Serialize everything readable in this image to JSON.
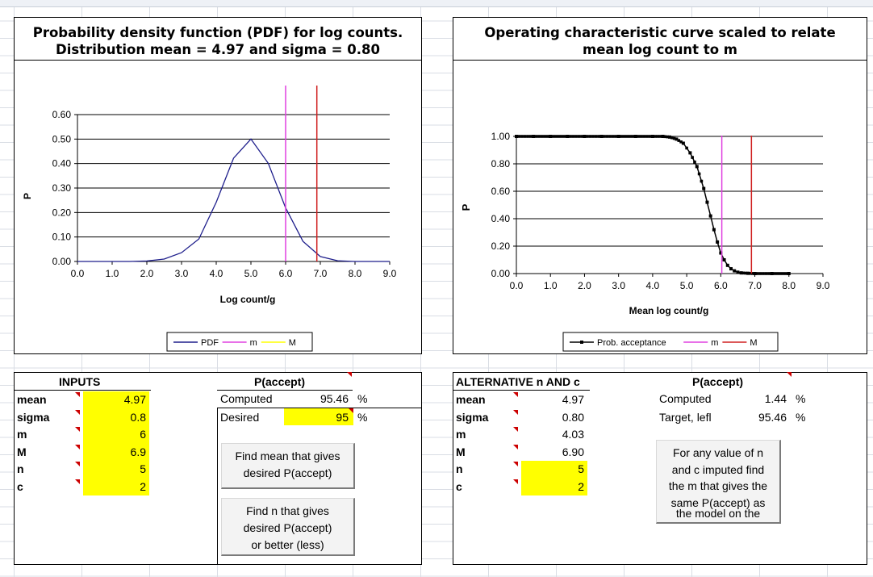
{
  "chart_data": [
    {
      "type": "line",
      "title": "Probability density function (PDF) for log counts.",
      "subtitle": "Distribution mean = 4.97 and sigma = 0.80",
      "xlabel": "Log count/g",
      "ylabel": "P",
      "xlim": [
        0,
        9
      ],
      "ylim": [
        0,
        0.6
      ],
      "xticks": [
        "0.0",
        "1.0",
        "2.0",
        "3.0",
        "4.0",
        "5.0",
        "6.0",
        "7.0",
        "8.0",
        "9.0"
      ],
      "yticks": [
        "0.00",
        "0.10",
        "0.20",
        "0.30",
        "0.40",
        "0.50",
        "0.60"
      ],
      "grid": "horizontal",
      "legend_position": "bottom",
      "series": [
        {
          "name": "PDF",
          "color": "#1f1f8c",
          "distribution": "normal",
          "mean": 4.97,
          "sigma": 0.8,
          "x": [
            0,
            0.5,
            1,
            1.5,
            2,
            2.5,
            3,
            3.5,
            4,
            4.5,
            5,
            5.5,
            6,
            6.5,
            7,
            7.5,
            8,
            8.5,
            9
          ],
          "y": [
            0,
            0,
            0,
            0,
            0.002,
            0.01,
            0.036,
            0.092,
            0.242,
            0.422,
            0.5,
            0.401,
            0.219,
            0.082,
            0.02,
            0.003,
            0,
            0,
            0
          ]
        },
        {
          "name": "m",
          "color": "#e040e0",
          "vline": 6.0
        },
        {
          "name": "M",
          "color": "#ffff00",
          "vline": 6.9,
          "drawn_color": "#d02020"
        }
      ]
    },
    {
      "type": "line",
      "title": "Operating characteristic curve scaled to relate",
      "subtitle": "mean log count to m",
      "xlabel": "Mean log count/g",
      "ylabel": "P",
      "xlim": [
        0,
        9
      ],
      "ylim": [
        0,
        1.0
      ],
      "xticks": [
        "0.0",
        "1.0",
        "2.0",
        "3.0",
        "4.0",
        "5.0",
        "6.0",
        "7.0",
        "8.0",
        "9.0"
      ],
      "yticks": [
        "0.00",
        "0.20",
        "0.40",
        "0.60",
        "0.80",
        "1.00"
      ],
      "grid": "horizontal",
      "legend_position": "bottom",
      "series": [
        {
          "name": "Prob. acceptance",
          "color": "#000000",
          "markers": true,
          "x": [
            0,
            0.5,
            1,
            1.5,
            2,
            2.5,
            3,
            3.5,
            4,
            4.3,
            4.5,
            4.7,
            4.9,
            5.1,
            5.3,
            5.5,
            5.6,
            5.7,
            5.8,
            5.9,
            6.0,
            6.1,
            6.2,
            6.3,
            6.4,
            6.5,
            6.6,
            6.8,
            7.0,
            7.5,
            8.0
          ],
          "y": [
            1,
            1,
            1,
            1,
            1,
            1,
            1,
            1,
            1,
            1,
            0.995,
            0.98,
            0.95,
            0.88,
            0.78,
            0.62,
            0.52,
            0.42,
            0.32,
            0.23,
            0.15,
            0.1,
            0.06,
            0.035,
            0.02,
            0.01,
            0.005,
            0.002,
            0,
            0,
            0
          ]
        },
        {
          "name": "m",
          "color": "#e040e0",
          "vline": 6.03
        },
        {
          "name": "M",
          "color": "#d02020",
          "vline": 6.9
        }
      ]
    }
  ],
  "inputs": {
    "header": "INPUTS",
    "rows": [
      {
        "label": "mean",
        "value": "4.97"
      },
      {
        "label": "sigma",
        "value": "0.8"
      },
      {
        "label": "m",
        "value": "6"
      },
      {
        "label": "M",
        "value": "6.9"
      },
      {
        "label": "n",
        "value": "5"
      },
      {
        "label": "c",
        "value": "2"
      }
    ],
    "paccept_header": "P(accept)",
    "computed_label": "Computed",
    "computed_value": "95.46",
    "desired_label": "Desired",
    "desired_value": "95",
    "pct": "%",
    "button_mean": [
      "Find mean that gives",
      "desired P(accept)"
    ],
    "button_n": [
      "Find n that gives",
      "desired P(accept)",
      "or better (less)"
    ]
  },
  "alternative": {
    "header": "ALTERNATIVE n AND c",
    "rows": [
      {
        "label": "mean",
        "value": "4.97"
      },
      {
        "label": "sigma",
        "value": "0.80"
      },
      {
        "label": "m",
        "value": "4.03"
      },
      {
        "label": "M",
        "value": "6.90"
      },
      {
        "label": "n",
        "value": "5"
      },
      {
        "label": "c",
        "value": "2"
      }
    ],
    "paccept_header": "P(accept)",
    "computed_label": "Computed",
    "computed_value": "1.44",
    "target_label": "Target, lefl",
    "target_value": "95.46",
    "pct": "%",
    "button_lines": [
      "For any value of n",
      "and c imputed find",
      "the m that gives the",
      "same P(accept) as",
      "the model on the"
    ]
  }
}
